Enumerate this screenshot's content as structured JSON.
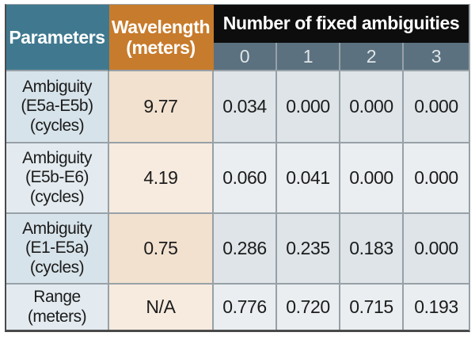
{
  "table": {
    "header": {
      "parameters": "Parameters",
      "wavelength": "Wavelength\n(meters)",
      "fixed_ambiguities": "Number of fixed ambiguities",
      "counts": [
        "0",
        "1",
        "2",
        "3"
      ]
    },
    "rows": [
      {
        "parameter": "Ambiguity\n(E5a-E5b)\n(cycles)",
        "wavelength": "9.77",
        "values": [
          "0.034",
          "0.000",
          "0.000",
          "0.000"
        ]
      },
      {
        "parameter": "Ambiguity\n(E5b-E6)\n(cycles)",
        "wavelength": "4.19",
        "values": [
          "0.060",
          "0.041",
          "0.000",
          "0.000"
        ]
      },
      {
        "parameter": "Ambiguity\n(E1-E5a)\n(cycles)",
        "wavelength": "0.75",
        "values": [
          "0.286",
          "0.235",
          "0.183",
          "0.000"
        ]
      },
      {
        "parameter": "Range\n(meters)",
        "wavelength": "N/A",
        "values": [
          "0.776",
          "0.720",
          "0.715",
          "0.193"
        ]
      }
    ]
  },
  "chart_data": {
    "type": "table",
    "title": "Number of fixed ambiguities",
    "columns": [
      "Parameters",
      "Wavelength (meters)",
      "0",
      "1",
      "2",
      "3"
    ],
    "cells": [
      [
        "Ambiguity (E5a-E5b) (cycles)",
        "9.77",
        "0.034",
        "0.000",
        "0.000",
        "0.000"
      ],
      [
        "Ambiguity (E5b-E6) (cycles)",
        "4.19",
        "0.060",
        "0.041",
        "0.000",
        "0.000"
      ],
      [
        "Ambiguity (E1-E5a) (cycles)",
        "0.75",
        "0.286",
        "0.235",
        "0.183",
        "0.000"
      ],
      [
        "Range (meters)",
        "N/A",
        "0.776",
        "0.720",
        "0.715",
        "0.193"
      ]
    ]
  },
  "colors": {
    "teal": "#40798f",
    "orange": "#c77b2c",
    "header-black": "#0d0d0d",
    "slate": "#5b717f",
    "param-odd": "#d7e3ea",
    "param-even": "#e3ebf0",
    "wave-odd": "#f2e1cf",
    "wave-even": "#f7ebdf",
    "data-odd": "#dee4e8",
    "data-even": "#eaeef0",
    "grid-line": "#97a1a7",
    "outer-border": "#4a4a4a"
  }
}
